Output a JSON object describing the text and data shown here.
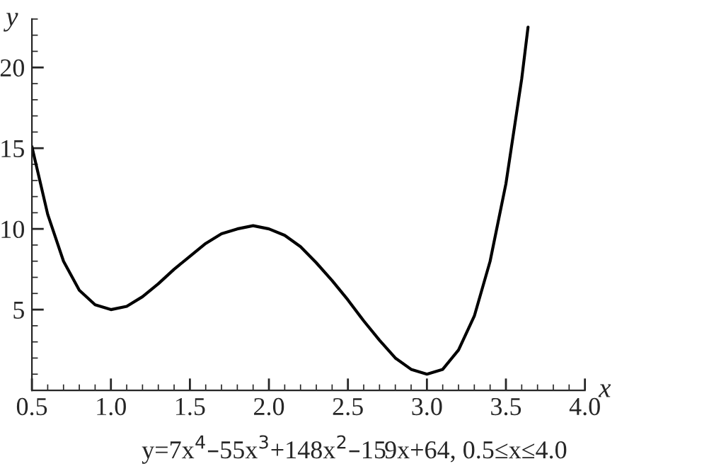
{
  "chart_data": {
    "type": "line",
    "xlabel": "x",
    "ylabel": "y",
    "x": [
      0.5,
      0.6,
      0.7,
      0.8,
      0.9,
      1.0,
      1.1,
      1.2,
      1.3,
      1.4,
      1.5,
      1.6,
      1.7,
      1.8,
      1.9,
      2.0,
      2.1,
      2.2,
      2.3,
      2.4,
      2.5,
      2.6,
      2.7,
      2.8,
      2.9,
      3.0,
      3.1,
      3.2,
      3.3,
      3.4,
      3.5,
      3.6,
      3.64
    ],
    "series": [
      {
        "color": "#000000",
        "values": [
          15.1,
          10.9,
          8.0,
          6.2,
          5.3,
          5.0,
          5.2,
          5.8,
          6.6,
          7.5,
          8.3,
          9.1,
          9.7,
          10.0,
          10.2,
          10.0,
          9.6,
          8.9,
          7.9,
          6.8,
          5.6,
          4.3,
          3.1,
          2.0,
          1.3,
          1.0,
          1.3,
          2.5,
          4.6,
          8.0,
          12.8,
          19.3,
          22.5
        ]
      }
    ],
    "xlim": [
      0.5,
      4.0
    ],
    "ylim": [
      0,
      23
    ],
    "xticks": [
      0.5,
      {
        "value": 1.0,
        "label": "1.0"
      },
      1.5,
      {
        "value": 2.0,
        "label": "2.0"
      },
      2.5,
      {
        "value": 3.0,
        "label": "3.0"
      },
      3.5,
      {
        "value": 4.0,
        "label": "4.0"
      }
    ],
    "yticks": [
      5,
      10,
      15,
      20
    ],
    "annotations": [
      "y=7x$^{4}$–55x$^{3}$+148x$^{2}$–159x+64, 0.5≤x≤4.0"
    ],
    "grid": false,
    "legend": false,
    "marker": "none",
    "line_style": "solid"
  }
}
